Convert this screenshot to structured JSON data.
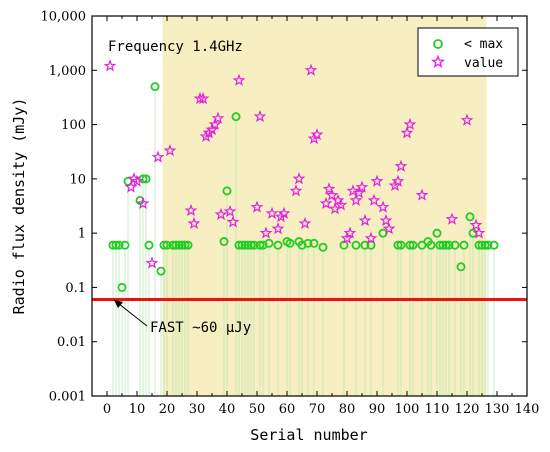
{
  "chart_data": {
    "type": "scatter",
    "xlabel": "Serial number",
    "ylabel": "Radio flux density (mJy)",
    "xlim": [
      -5,
      140
    ],
    "ylim": [
      0.001,
      10000
    ],
    "y_scale": "log",
    "x_ticks": [
      0,
      10,
      20,
      30,
      40,
      50,
      60,
      70,
      80,
      90,
      100,
      110,
      120,
      130,
      140
    ],
    "x_tick_labels": [
      "0",
      "10",
      "20",
      "30",
      "40",
      "50",
      "60",
      "70",
      "80",
      "90",
      "100",
      "110",
      "120",
      "130",
      "140"
    ],
    "y_ticks": [
      0.001,
      0.01,
      0.1,
      1,
      10,
      100,
      1000,
      10000
    ],
    "y_tick_labels": [
      "0.001",
      "0.01",
      "0.1",
      "1",
      "10",
      "100",
      "1,000",
      "10,000"
    ],
    "grid": false,
    "legend_position": "top-right",
    "shaded_x_range": [
      18.5,
      126.5
    ],
    "shaded_color": "#f7efc2",
    "annotations": {
      "frequency": "Frequency 1.4GHz",
      "fast": "FAST ~60 μJy"
    },
    "threshold": {
      "value": 0.06,
      "color": "#ee1111"
    },
    "series": [
      {
        "name": "< max",
        "marker": "circle",
        "color": "#22cc22",
        "points": [
          [
            2,
            0.6
          ],
          [
            3,
            0.6
          ],
          [
            4,
            0.6
          ],
          [
            5,
            0.1
          ],
          [
            6,
            0.6
          ],
          [
            7,
            9
          ],
          [
            11,
            4
          ],
          [
            12,
            10
          ],
          [
            13,
            10
          ],
          [
            14,
            0.6
          ],
          [
            16,
            500
          ],
          [
            18,
            0.2
          ],
          [
            19,
            0.6
          ],
          [
            20,
            0.6
          ],
          [
            22,
            0.6
          ],
          [
            23,
            0.6
          ],
          [
            24,
            0.6
          ],
          [
            25,
            0.6
          ],
          [
            26,
            0.6
          ],
          [
            27,
            0.6
          ],
          [
            39,
            0.7
          ],
          [
            40,
            6
          ],
          [
            43,
            140
          ],
          [
            44,
            0.6
          ],
          [
            45,
            0.6
          ],
          [
            46,
            0.6
          ],
          [
            47,
            0.6
          ],
          [
            48,
            0.6
          ],
          [
            49,
            0.6
          ],
          [
            51,
            0.6
          ],
          [
            52,
            0.6
          ],
          [
            54,
            0.65
          ],
          [
            57,
            0.6
          ],
          [
            60,
            0.7
          ],
          [
            61,
            0.65
          ],
          [
            64,
            0.7
          ],
          [
            65,
            0.6
          ],
          [
            67,
            0.65
          ],
          [
            69,
            0.65
          ],
          [
            72,
            0.55
          ],
          [
            79,
            0.6
          ],
          [
            83,
            0.6
          ],
          [
            86,
            0.6
          ],
          [
            88,
            0.6
          ],
          [
            92,
            1
          ],
          [
            97,
            0.6
          ],
          [
            98,
            0.6
          ],
          [
            101,
            0.6
          ],
          [
            102,
            0.6
          ],
          [
            105,
            0.6
          ],
          [
            107,
            0.7
          ],
          [
            108,
            0.6
          ],
          [
            110,
            1
          ],
          [
            111,
            0.6
          ],
          [
            112,
            0.6
          ],
          [
            113,
            0.6
          ],
          [
            114,
            0.6
          ],
          [
            116,
            0.6
          ],
          [
            118,
            0.24
          ],
          [
            119,
            0.6
          ],
          [
            121,
            2
          ],
          [
            122,
            1
          ],
          [
            124,
            0.6
          ],
          [
            125,
            0.6
          ],
          [
            126,
            0.6
          ],
          [
            127,
            0.6
          ],
          [
            129,
            0.6
          ]
        ]
      },
      {
        "name": "value",
        "marker": "star",
        "color": "#e020e0",
        "points": [
          [
            1,
            1200
          ],
          [
            8,
            7
          ],
          [
            9,
            10
          ],
          [
            10,
            9
          ],
          [
            12,
            3.5
          ],
          [
            15,
            0.28
          ],
          [
            17,
            25
          ],
          [
            21,
            33
          ],
          [
            28,
            2.6
          ],
          [
            29,
            1.5
          ],
          [
            31,
            300
          ],
          [
            32,
            300
          ],
          [
            33,
            60
          ],
          [
            34,
            70
          ],
          [
            35,
            80
          ],
          [
            36,
            100
          ],
          [
            37,
            130
          ],
          [
            38,
            2.2
          ],
          [
            41,
            2.5
          ],
          [
            42,
            1.6
          ],
          [
            44,
            650
          ],
          [
            50,
            3
          ],
          [
            51,
            140
          ],
          [
            53,
            1
          ],
          [
            55,
            2.3
          ],
          [
            57,
            1.2
          ],
          [
            58,
            2
          ],
          [
            59,
            2.3
          ],
          [
            63,
            6
          ],
          [
            64,
            10
          ],
          [
            66,
            1.5
          ],
          [
            68,
            1000
          ],
          [
            69,
            55
          ],
          [
            70,
            65
          ],
          [
            73,
            3.5
          ],
          [
            74,
            6.5
          ],
          [
            75,
            5
          ],
          [
            76,
            2.8
          ],
          [
            77,
            4
          ],
          [
            78,
            3.3
          ],
          [
            80,
            0.8
          ],
          [
            81,
            1
          ],
          [
            82,
            6
          ],
          [
            83,
            4
          ],
          [
            84,
            5.5
          ],
          [
            85,
            7
          ],
          [
            86,
            1.7
          ],
          [
            88,
            0.8
          ],
          [
            89,
            4
          ],
          [
            90,
            9
          ],
          [
            92,
            3
          ],
          [
            93,
            1.7
          ],
          [
            94,
            1.2
          ],
          [
            96,
            7.5
          ],
          [
            97,
            9
          ],
          [
            98,
            17
          ],
          [
            100,
            70
          ],
          [
            101,
            100
          ],
          [
            105,
            5
          ],
          [
            115,
            1.8
          ],
          [
            120,
            120
          ],
          [
            123,
            1.4
          ],
          [
            124,
            1
          ]
        ]
      }
    ]
  }
}
